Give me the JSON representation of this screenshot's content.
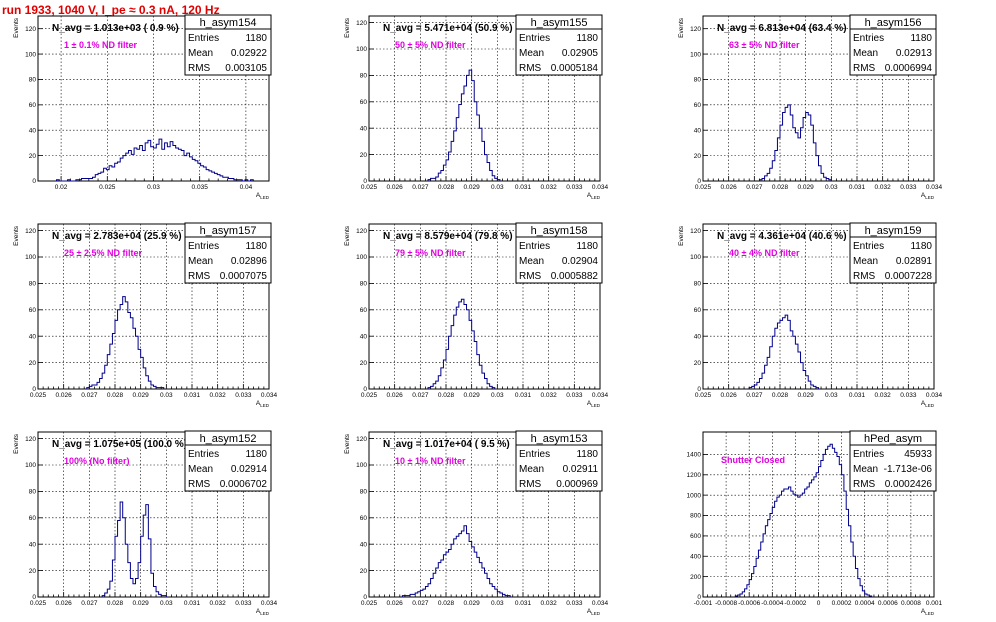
{
  "page_title": "run 1933,  1040 V, I_pe ≈ 0.3 nA, 120 Hz",
  "stats_labels": {
    "entries": "Entries",
    "mean": "Mean",
    "rms": "RMS"
  },
  "colors": {
    "histogram": "#00008b",
    "title": "#e00000",
    "annotation": "#e000e0"
  },
  "chart_data": [
    {
      "type": "histogram",
      "name": "h_asym154",
      "nlabel": "N_avg = 1.013e+03 ( 0.9 %)",
      "annotation": "1 ± 0.1% ND filter",
      "entries": "1180",
      "mean": "0.02922",
      "rms": "0.003105",
      "xlabel": "A_LED",
      "ylabel": "Events",
      "xlim": [
        0.0175,
        0.0425
      ],
      "ylim": [
        0,
        130
      ],
      "xticks": [
        0.02,
        0.025,
        0.03,
        0.035,
        0.04
      ],
      "xticklabels": [
        "0.02",
        "0.025",
        "0.03",
        "0.035",
        "0.04"
      ],
      "yticks": [
        0,
        20,
        40,
        60,
        80,
        100,
        120
      ],
      "bins_x0": 0.0195,
      "bin_width": 0.0003,
      "values": [
        1,
        0,
        0,
        0,
        1,
        0,
        0,
        1,
        1,
        2,
        2,
        2,
        2,
        3,
        5,
        6,
        7,
        10,
        9,
        12,
        11,
        14,
        15,
        18,
        20,
        22,
        24,
        21,
        26,
        25,
        28,
        24,
        30,
        32,
        27,
        26,
        29,
        33,
        25,
        30,
        27,
        31,
        28,
        26,
        25,
        24,
        20,
        22,
        19,
        17,
        16,
        14,
        12,
        11,
        9,
        8,
        7,
        6,
        5,
        4,
        3,
        3,
        2,
        2,
        1,
        1,
        1,
        0,
        1,
        0,
        1
      ]
    },
    {
      "type": "histogram",
      "name": "h_asym155",
      "nlabel": "N_avg = 5.471e+04 (50.9 %)",
      "annotation": "50 ± 5% ND filter",
      "entries": "1180",
      "mean": "0.02905",
      "rms": "0.0005184",
      "xlabel": "A_LED",
      "ylabel": "Events",
      "xlim": [
        0.025,
        0.034
      ],
      "ylim": [
        0,
        125
      ],
      "xticks": [
        0.025,
        0.026,
        0.027,
        0.028,
        0.029,
        0.03,
        0.031,
        0.032,
        0.033,
        0.034
      ],
      "xticklabels": [
        "0.025",
        "0.026",
        "0.027",
        "0.028",
        "0.029",
        "0.03",
        "0.031",
        "0.032",
        "0.033",
        "0.034"
      ],
      "yticks": [
        0,
        20,
        40,
        60,
        80,
        100,
        120
      ],
      "bins_x0": 0.0273,
      "bin_width": 0.0001,
      "values": [
        1,
        2,
        2,
        3,
        6,
        8,
        12,
        16,
        22,
        30,
        38,
        48,
        58,
        66,
        72,
        80,
        84,
        76,
        60,
        50,
        40,
        30,
        20,
        14,
        8,
        4,
        2,
        1
      ]
    },
    {
      "type": "histogram",
      "name": "h_asym156",
      "nlabel": "N_avg = 6.813e+04 (63.4 %)",
      "annotation": "63 ± 5% ND filter",
      "entries": "1180",
      "mean": "0.02913",
      "rms": "0.0006994",
      "xlabel": "A_LED",
      "ylabel": "Events",
      "xlim": [
        0.025,
        0.034
      ],
      "ylim": [
        0,
        130
      ],
      "xticks": [
        0.025,
        0.026,
        0.027,
        0.028,
        0.029,
        0.03,
        0.031,
        0.032,
        0.033,
        0.034
      ],
      "xticklabels": [
        "0.025",
        "0.026",
        "0.027",
        "0.028",
        "0.029",
        "0.03",
        "0.031",
        "0.032",
        "0.033",
        "0.034"
      ],
      "yticks": [
        0,
        20,
        40,
        60,
        80,
        100,
        120
      ],
      "bins_x0": 0.0272,
      "bin_width": 0.0001,
      "values": [
        1,
        2,
        4,
        6,
        10,
        16,
        24,
        34,
        44,
        54,
        58,
        60,
        52,
        42,
        38,
        34,
        42,
        50,
        54,
        52,
        44,
        30,
        20,
        12,
        6,
        3,
        2,
        1
      ]
    },
    {
      "type": "histogram",
      "name": "h_asym157",
      "nlabel": "N_avg = 2.783e+04 (25.9 %)",
      "annotation": "25 ± 2.5% ND filter",
      "entries": "1180",
      "mean": "0.02896",
      "rms": "0.0007075",
      "xlabel": "A_LED",
      "ylabel": "Events",
      "xlim": [
        0.025,
        0.034
      ],
      "ylim": [
        0,
        125
      ],
      "xticks": [
        0.025,
        0.026,
        0.027,
        0.028,
        0.029,
        0.03,
        0.031,
        0.032,
        0.033,
        0.034
      ],
      "xticklabels": [
        "0.025",
        "0.026",
        "0.027",
        "0.028",
        "0.029",
        "0.03",
        "0.031",
        "0.032",
        "0.033",
        "0.034"
      ],
      "yticks": [
        0,
        20,
        40,
        60,
        80,
        100,
        120
      ],
      "bins_x0": 0.0269,
      "bin_width": 0.0001,
      "values": [
        1,
        2,
        3,
        3,
        5,
        8,
        12,
        18,
        26,
        34,
        42,
        52,
        60,
        64,
        70,
        66,
        58,
        54,
        46,
        40,
        30,
        24,
        16,
        10,
        6,
        3,
        2,
        1,
        1,
        1
      ]
    },
    {
      "type": "histogram",
      "name": "h_asym158",
      "nlabel": "N_avg = 8.579e+04 (79.8 %)",
      "annotation": "79 ± 5% ND filter",
      "entries": "1180",
      "mean": "0.02904",
      "rms": "0.0005882",
      "xlabel": "A_LED",
      "ylabel": "Events",
      "xlim": [
        0.025,
        0.034
      ],
      "ylim": [
        0,
        125
      ],
      "xticks": [
        0.025,
        0.026,
        0.027,
        0.028,
        0.029,
        0.03,
        0.031,
        0.032,
        0.033,
        0.034
      ],
      "xticklabels": [
        "0.025",
        "0.026",
        "0.027",
        "0.028",
        "0.029",
        "0.03",
        "0.031",
        "0.032",
        "0.033",
        "0.034"
      ],
      "yticks": [
        0,
        20,
        40,
        60,
        80,
        100,
        120
      ],
      "bins_x0": 0.0273,
      "bin_width": 0.0001,
      "values": [
        1,
        2,
        4,
        6,
        10,
        16,
        22,
        30,
        40,
        48,
        56,
        62,
        66,
        68,
        64,
        60,
        52,
        44,
        36,
        26,
        18,
        12,
        8,
        4,
        2,
        1
      ]
    },
    {
      "type": "histogram",
      "name": "h_asym159",
      "nlabel": "N_avg = 4.361e+04 (40.6 %)",
      "annotation": "40 ± 4% ND filter",
      "entries": "1180",
      "mean": "0.02891",
      "rms": "0.0007228",
      "xlabel": "A_LED",
      "ylabel": "Events",
      "xlim": [
        0.025,
        0.034
      ],
      "ylim": [
        0,
        125
      ],
      "xticks": [
        0.025,
        0.026,
        0.027,
        0.028,
        0.029,
        0.03,
        0.031,
        0.032,
        0.033,
        0.034
      ],
      "xticklabels": [
        "0.025",
        "0.026",
        "0.027",
        "0.028",
        "0.029",
        "0.03",
        "0.031",
        "0.032",
        "0.033",
        "0.034"
      ],
      "yticks": [
        0,
        20,
        40,
        60,
        80,
        100,
        120
      ],
      "bins_x0": 0.0268,
      "bin_width": 0.0001,
      "values": [
        1,
        2,
        3,
        5,
        8,
        12,
        18,
        24,
        32,
        40,
        46,
        50,
        52,
        54,
        56,
        52,
        44,
        40,
        34,
        28,
        20,
        14,
        10,
        6,
        3,
        2,
        1
      ]
    },
    {
      "type": "histogram",
      "name": "h_asym152",
      "nlabel": "N_avg = 1.075e+05 (100.0 %)",
      "annotation": "100% (No filter)",
      "entries": "1180",
      "mean": "0.02914",
      "rms": "0.0006702",
      "xlabel": "A_LED",
      "ylabel": "Events",
      "xlim": [
        0.025,
        0.034
      ],
      "ylim": [
        0,
        125
      ],
      "xticks": [
        0.025,
        0.026,
        0.027,
        0.028,
        0.029,
        0.03,
        0.031,
        0.032,
        0.033,
        0.034
      ],
      "xticklabels": [
        "0.025",
        "0.026",
        "0.027",
        "0.028",
        "0.029",
        "0.03",
        "0.031",
        "0.032",
        "0.033",
        "0.034"
      ],
      "yticks": [
        0,
        20,
        40,
        60,
        80,
        100,
        120
      ],
      "bins_x0": 0.0275,
      "bin_width": 0.0001,
      "values": [
        1,
        3,
        6,
        12,
        28,
        46,
        58,
        72,
        60,
        40,
        26,
        14,
        10,
        14,
        26,
        46,
        62,
        70,
        44,
        18,
        8,
        4,
        2,
        1,
        1
      ]
    },
    {
      "type": "histogram",
      "name": "h_asym153",
      "nlabel": "N_avg = 1.017e+04 ( 9.5 %)",
      "annotation": "10 ± 1% ND filter",
      "entries": "1180",
      "mean": "0.02911",
      "rms": "0.000969",
      "xlabel": "A_LED",
      "ylabel": "Events",
      "xlim": [
        0.025,
        0.034
      ],
      "ylim": [
        0,
        125
      ],
      "xticks": [
        0.025,
        0.026,
        0.027,
        0.028,
        0.029,
        0.03,
        0.031,
        0.032,
        0.033,
        0.034
      ],
      "xticklabels": [
        "0.025",
        "0.026",
        "0.027",
        "0.028",
        "0.029",
        "0.03",
        "0.031",
        "0.032",
        "0.033",
        "0.034"
      ],
      "yticks": [
        0,
        20,
        40,
        60,
        80,
        100,
        120
      ],
      "bins_x0": 0.0263,
      "bin_width": 0.0001,
      "values": [
        1,
        1,
        1,
        2,
        2,
        3,
        4,
        5,
        6,
        8,
        10,
        14,
        18,
        22,
        26,
        28,
        32,
        34,
        36,
        40,
        44,
        46,
        48,
        50,
        54,
        48,
        42,
        38,
        34,
        30,
        26,
        22,
        18,
        14,
        10,
        8,
        6,
        4,
        3,
        2,
        1,
        1
      ]
    },
    {
      "type": "histogram",
      "name": "hPed_asym",
      "nlabel": "",
      "annotation": "Shutter Closed",
      "entries": "45933",
      "mean": "-1.713e-06",
      "rms": "0.0002426",
      "xlabel": "A_LED",
      "ylabel": "",
      "xlim": [
        -0.001,
        0.001
      ],
      "ylim": [
        0,
        1620
      ],
      "xticks": [
        -0.001,
        -0.0008,
        -0.0006,
        -0.0004,
        -0.0002,
        0,
        0.0002,
        0.0004,
        0.0006,
        0.0008,
        0.001
      ],
      "xticklabels": [
        "-0.001",
        "-0.0008",
        "-0.0006",
        "-0.0004",
        "-0.0002",
        "0",
        "0.0002",
        "0.0004",
        "0.0006",
        "0.0008",
        "0.001"
      ],
      "yticks": [
        0,
        200,
        400,
        600,
        800,
        1000,
        1200,
        1400
      ],
      "bins_x0": -0.00072,
      "bin_width": 2e-05,
      "values": [
        10,
        20,
        30,
        50,
        80,
        120,
        170,
        230,
        300,
        380,
        460,
        540,
        620,
        700,
        760,
        820,
        880,
        940,
        980,
        1000,
        1040,
        1060,
        1060,
        1080,
        1040,
        1010,
        1000,
        980,
        1000,
        1020,
        1060,
        1080,
        1120,
        1150,
        1180,
        1220,
        1280,
        1340,
        1400,
        1450,
        1480,
        1500,
        1460,
        1420,
        1380,
        1300,
        1200,
        1040,
        860,
        700,
        540,
        400,
        280,
        180,
        110,
        60,
        30,
        20,
        10
      ]
    }
  ]
}
